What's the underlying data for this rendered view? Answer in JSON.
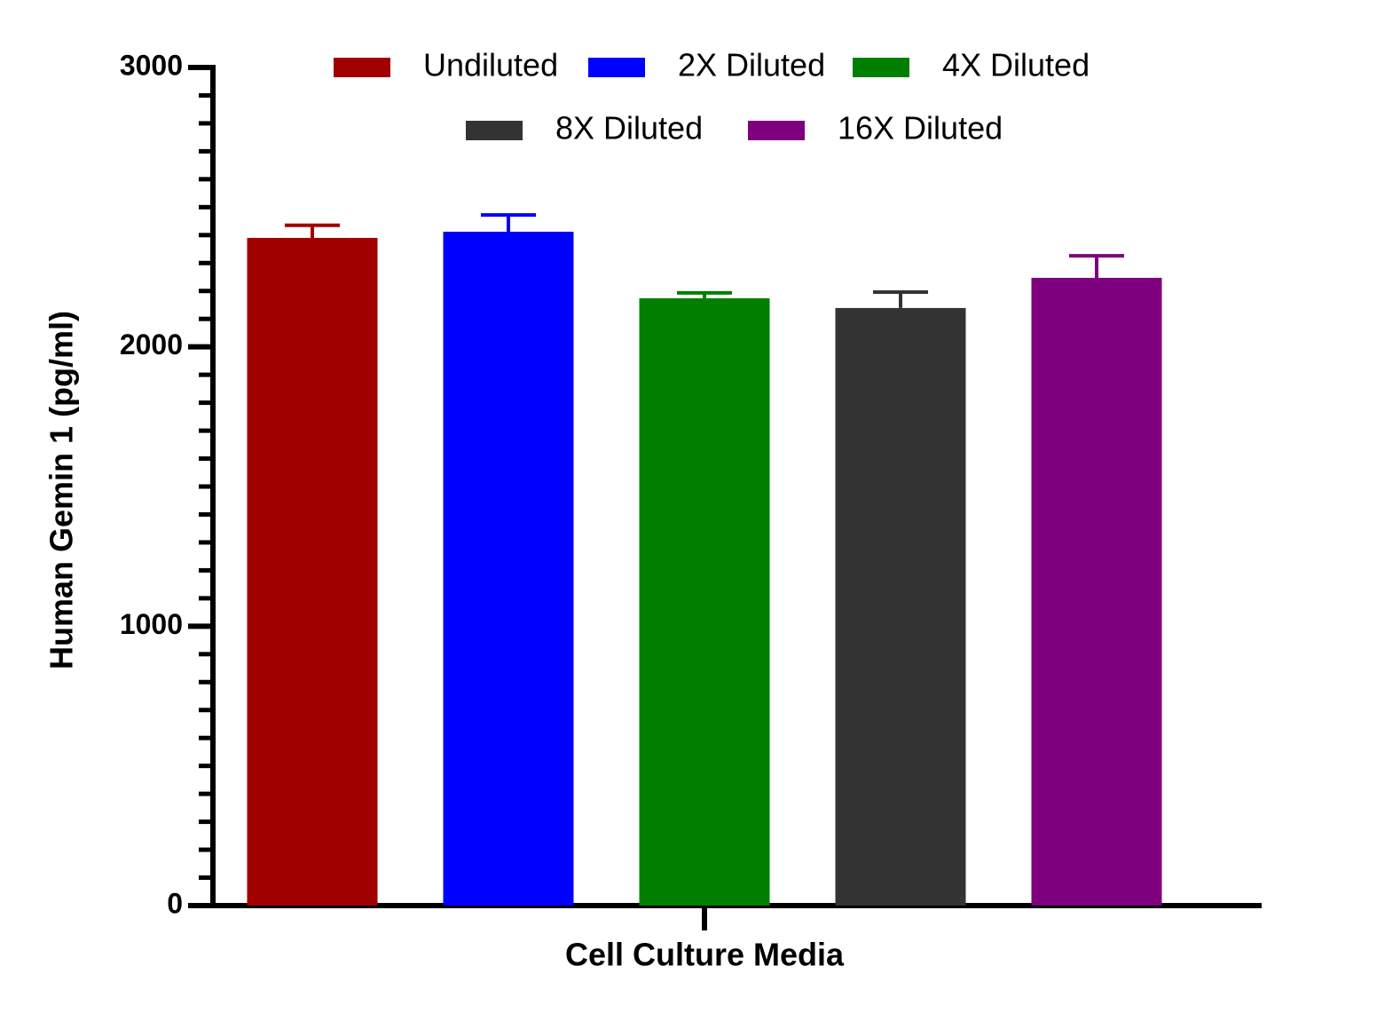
{
  "chart_data": {
    "type": "bar",
    "y_label": "Human Gemin 1 (pg/ml)",
    "categories": [
      "Cell Culture Media"
    ],
    "series": [
      {
        "name": "Undiluted",
        "color": "#a00000",
        "values": [
          2390
        ],
        "errors": [
          45
        ]
      },
      {
        "name": "2X Diluted",
        "color": "#0000ff",
        "values": [
          2412
        ],
        "errors": [
          60
        ]
      },
      {
        "name": "4X Diluted",
        "color": "#007f00",
        "values": [
          2174
        ],
        "errors": [
          19
        ]
      },
      {
        "name": "8X Diluted",
        "color": "#333333",
        "values": [
          2139
        ],
        "errors": [
          57
        ]
      },
      {
        "name": "16X Diluted",
        "color": "#7f007f",
        "values": [
          2247
        ],
        "errors": [
          79
        ]
      }
    ],
    "ylim": [
      0,
      3000
    ],
    "yticks": [
      0,
      1000,
      2000,
      3000
    ],
    "yminorticks": [
      100,
      200,
      300,
      400,
      500,
      600,
      700,
      800,
      900,
      1100,
      1200,
      1300,
      1400,
      1500,
      1600,
      1700,
      1800,
      1900,
      2100,
      2200,
      2300,
      2400,
      2500,
      2600,
      2700,
      2800,
      2900
    ],
    "legend": "top"
  }
}
